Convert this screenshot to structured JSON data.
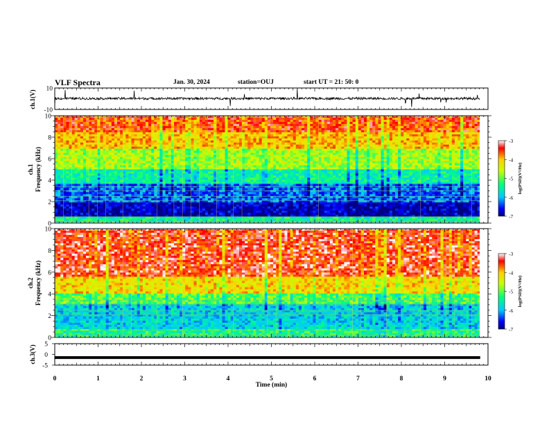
{
  "header": {
    "title": "VLF Spectra",
    "date": "Jan. 30, 2024",
    "station": "station=OUJ",
    "start": "start  UT  =   21: 50: 0"
  },
  "colors": {
    "scale": [
      "#000080",
      "#0000ff",
      "#00c8ff",
      "#00ff80",
      "#c8ff00",
      "#ffd000",
      "#ff0000",
      "#ffffff"
    ]
  },
  "chart_data": [
    {
      "type": "line",
      "panel": "ch1-waveform",
      "ylabel": "ch.1(V)",
      "ylim": [
        -10,
        10
      ],
      "y_ticks": [
        "10",
        "-10"
      ],
      "xlim": [
        0,
        10
      ]
    },
    {
      "type": "heatmap",
      "panel": "ch1-spectrogram",
      "ylabel_channel": "ch.1",
      "ylabel": "Frequency (kHz)",
      "ylim": [
        0,
        10
      ],
      "y_ticks": [
        "0",
        "2",
        "4",
        "6",
        "8",
        "10"
      ],
      "xlim": [
        0,
        9.82
      ],
      "colorbar": {
        "label": "log(PSD)(V²/Hz)",
        "ticks": [
          "-3",
          "-4",
          "-5",
          "-6",
          "-7"
        ],
        "range": [
          -7,
          -3
        ]
      }
    },
    {
      "type": "heatmap",
      "panel": "ch2-spectrogram",
      "ylabel_channel": "ch.2",
      "ylabel": "Frequency (kHz)",
      "ylim": [
        0,
        10
      ],
      "y_ticks": [
        "0",
        "2",
        "4",
        "6",
        "8",
        "10"
      ],
      "xlim": [
        0,
        9.82
      ],
      "colorbar": {
        "label": "log(PSD)(V²/Hz)",
        "ticks": [
          "-3",
          "-4",
          "-5",
          "-6",
          "-7"
        ],
        "range": [
          -7,
          -3
        ]
      }
    },
    {
      "type": "line",
      "panel": "ch3-waveform",
      "ylabel": "ch.3(V)",
      "ylim": [
        -5,
        5
      ],
      "y_ticks": [
        "5",
        "0",
        "-5"
      ],
      "x": [
        0,
        9.82
      ],
      "y": [
        -1.5,
        -1.5
      ]
    }
  ],
  "x_axis": {
    "label": "Time (min)",
    "ticks": [
      "0",
      "1",
      "2",
      "3",
      "4",
      "5",
      "6",
      "7",
      "8",
      "9",
      "10"
    ],
    "range": [
      0,
      10
    ]
  }
}
